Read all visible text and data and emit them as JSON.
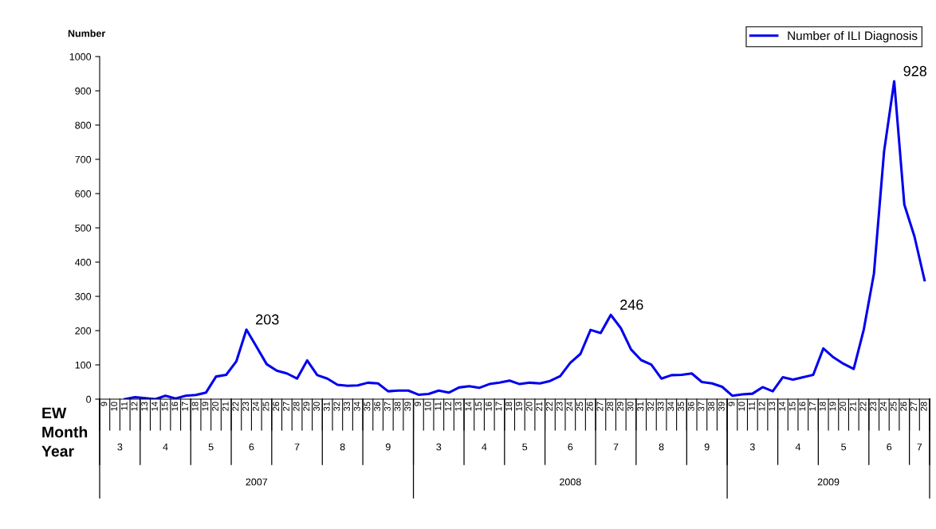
{
  "chart_data": {
    "type": "line",
    "ylabel": "Number",
    "categories": [
      "9",
      "10",
      "11",
      "12",
      "13",
      "14",
      "15",
      "16",
      "17",
      "18",
      "19",
      "20",
      "21",
      "22",
      "23",
      "24",
      "25",
      "26",
      "27",
      "28",
      "29",
      "30",
      "31",
      "32",
      "33",
      "34",
      "35",
      "36",
      "37",
      "38",
      "39",
      "9",
      "10",
      "11",
      "12",
      "13",
      "14",
      "15",
      "16",
      "17",
      "18",
      "19",
      "20",
      "21",
      "22",
      "23",
      "24",
      "25",
      "26",
      "27",
      "28",
      "29",
      "30",
      "31",
      "32",
      "33",
      "34",
      "35",
      "36",
      "37",
      "38",
      "39",
      "9",
      "10",
      "11",
      "12",
      "13",
      "14",
      "15",
      "16",
      "17",
      "18",
      "19",
      "20",
      "21",
      "22",
      "23",
      "24",
      "25",
      "26",
      "27",
      "28"
    ],
    "series": [
      {
        "name": "Number of ILI Diagnosis",
        "color": "#0000ee",
        "values": [
          null,
          null,
          0,
          6,
          3,
          0,
          10,
          2,
          10,
          12,
          19,
          66,
          71,
          110,
          203,
          153,
          102,
          83,
          75,
          60,
          113,
          70,
          60,
          42,
          39,
          40,
          48,
          46,
          23,
          25,
          25,
          13,
          15,
          25,
          19,
          34,
          38,
          33,
          44,
          48,
          54,
          44,
          48,
          46,
          53,
          67,
          106,
          132,
          202,
          193,
          246,
          207,
          145,
          114,
          101,
          60,
          70,
          71,
          75,
          50,
          46,
          36,
          10,
          14,
          16,
          35,
          23,
          64,
          57,
          64,
          71,
          148,
          122,
          103,
          88,
          204,
          367,
          723,
          928,
          568,
          475,
          347
        ],
        "value_labels": [
          null,
          null,
          null,
          null,
          null,
          null,
          null,
          null,
          null,
          null,
          null,
          null,
          null,
          null,
          "203",
          null,
          null,
          null,
          null,
          null,
          null,
          null,
          null,
          null,
          null,
          null,
          null,
          null,
          null,
          null,
          null,
          null,
          null,
          null,
          null,
          null,
          null,
          null,
          null,
          null,
          null,
          null,
          null,
          null,
          null,
          null,
          null,
          null,
          null,
          null,
          "246",
          null,
          null,
          null,
          null,
          null,
          null,
          null,
          null,
          null,
          null,
          null,
          null,
          null,
          null,
          null,
          null,
          null,
          null,
          null,
          null,
          null,
          null,
          null,
          null,
          null,
          null,
          null,
          "928",
          null,
          null,
          null
        ]
      }
    ],
    "ylim": [
      0,
      1000
    ],
    "yticks": [
      0,
      100,
      200,
      300,
      400,
      500,
      600,
      700,
      800,
      900,
      1000
    ],
    "legend": "top right",
    "grid": false,
    "annotations": [
      "EW",
      "Month",
      "Year",
      "3",
      "4",
      "5",
      "6",
      "7",
      "8",
      "9",
      "3",
      "4",
      "5",
      "6",
      "7",
      "8",
      "9",
      "3",
      "4",
      "5",
      "6",
      "7",
      "2007",
      "2008",
      "2009"
    ]
  }
}
